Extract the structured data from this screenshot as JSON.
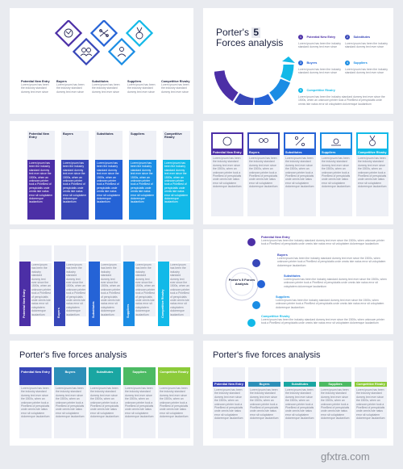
{
  "forces": [
    "Potential New Entry",
    "Buyers",
    "Substitutes",
    "Suppliers",
    "Competitive Rivalry"
  ],
  "lorem_short": "Lorem ipsum has been the industry standard dummy text ever since",
  "lorem_long": "Lorem ipsum has been the industry standard dummy text ever since the 1500s, when an unknown printer took a PineBest of perspiciatis unde omnis iste natus error sit voluptatem doloremque laudantium",
  "lorem_line": "Lorem ipsum has been the industry standard dummy text ever since the 1500s, when unknown printer took a PineBest of perspiciatis unde omnis iste natus error sit voluptatem doloremque laudantium",
  "slide2": {
    "title_a": "Porter's",
    "number": "5",
    "title_b": "Forces analysis",
    "nums": [
      "1",
      "2",
      "3",
      "4",
      "5"
    ]
  },
  "slide6": {
    "center": "Porter's 5 Forces Analysis"
  },
  "slide7": {
    "title": "Porter's five forces analysis"
  },
  "slide8": {
    "title": "Porter's five forces analysis"
  },
  "colors": {
    "c1": "#4c2fa6",
    "c2": "#3847b8",
    "c3": "#2563d6",
    "c4": "#1b8de4",
    "c5": "#12b9e8"
  },
  "watermark": "gfxtra.com"
}
